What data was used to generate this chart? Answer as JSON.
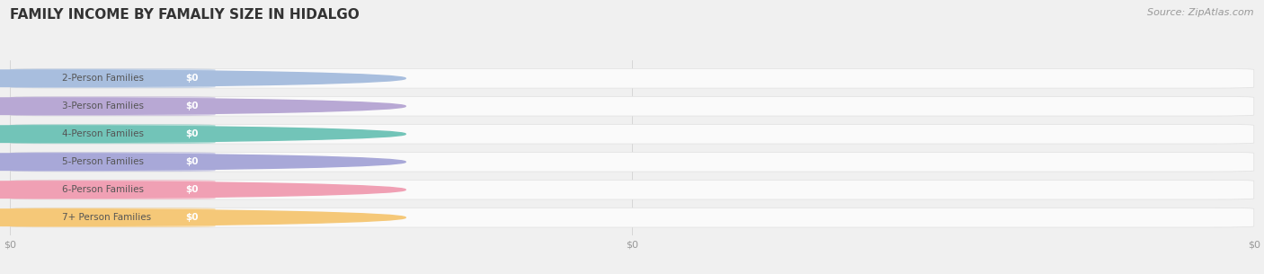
{
  "title": "FAMILY INCOME BY FAMALIY SIZE IN HIDALGO",
  "source": "Source: ZipAtlas.com",
  "categories": [
    "2-Person Families",
    "3-Person Families",
    "4-Person Families",
    "5-Person Families",
    "6-Person Families",
    "7+ Person Families"
  ],
  "values": [
    0,
    0,
    0,
    0,
    0,
    0
  ],
  "bar_colors": [
    "#a8bede",
    "#b8a8d4",
    "#72c4b8",
    "#a8a8d8",
    "#f0a0b4",
    "#f5c878"
  ],
  "bg_color": "#f0f0f0",
  "bar_track_color": "#f0f0f0",
  "bar_white_color": "#ffffff",
  "text_color": "#555555",
  "title_color": "#333333",
  "source_color": "#999999",
  "value_labels": [
    "$0",
    "$0",
    "$0",
    "$0",
    "$0",
    "$0"
  ],
  "xtick_labels": [
    "$0",
    "$0",
    "$0"
  ],
  "xtick_positions": [
    0.0,
    0.5,
    1.0
  ],
  "title_fontsize": 11,
  "source_fontsize": 8,
  "label_fontsize": 7.5,
  "value_fontsize": 7.5
}
